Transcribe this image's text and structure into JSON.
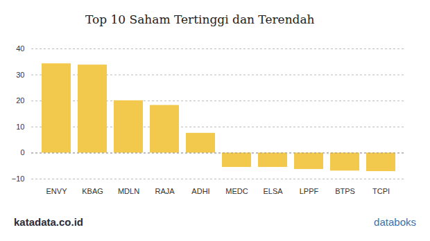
{
  "chart_data": {
    "type": "bar",
    "title": "Top 10 Saham Tertinggi dan Terendah",
    "categories": [
      "ENVY",
      "KBAG",
      "MDLN",
      "RAJA",
      "ADHI",
      "MEDC",
      "ELSA",
      "LPPF",
      "BTPS",
      "TCPI"
    ],
    "values": [
      34.3,
      33.8,
      20.1,
      18.3,
      7.6,
      -5.5,
      -5.5,
      -6.3,
      -6.9,
      -7.1
    ],
    "color": "#f2c94c",
    "ylim": [
      -10,
      40
    ],
    "yticks": [
      -10,
      0,
      10,
      20,
      30,
      40
    ],
    "grid": true,
    "annotations": [
      "katadata.co.id",
      "databoks"
    ]
  }
}
